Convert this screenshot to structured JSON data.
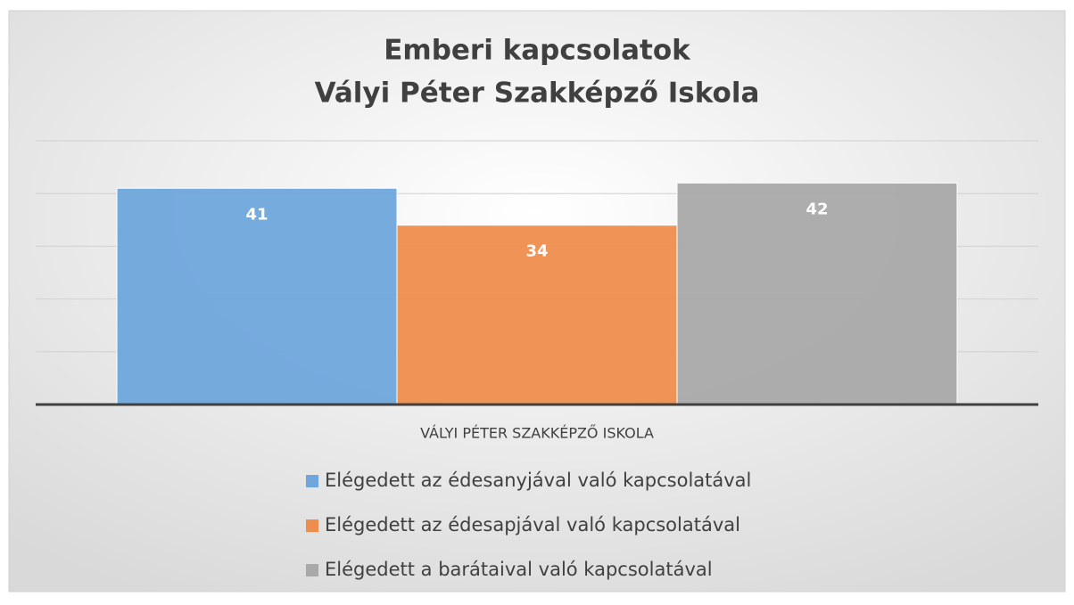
{
  "chart_data": {
    "type": "bar",
    "title": [
      "Emberi kapcsolatok",
      "Vályi Péter Szakképző Iskola"
    ],
    "categories": [
      "VÁLYI PÉTER SZAKKÉPZŐ ISKOLA"
    ],
    "series": [
      {
        "name": "Elégedett az édesanyjával való kapcsolatával",
        "color": "#6fa6dc",
        "values": [
          41
        ]
      },
      {
        "name": "Elégedett az édesapjával való kapcsolatával",
        "color": "#ee8d4e",
        "values": [
          34
        ]
      },
      {
        "name": "Elégedett a barátaival való kapcsolatával",
        "color": "#a9a9a9",
        "values": [
          42
        ]
      }
    ],
    "ylim": [
      0,
      50
    ],
    "yticks": [
      0,
      10,
      20,
      30,
      40,
      50
    ],
    "grid": true,
    "legend": "bottom"
  }
}
